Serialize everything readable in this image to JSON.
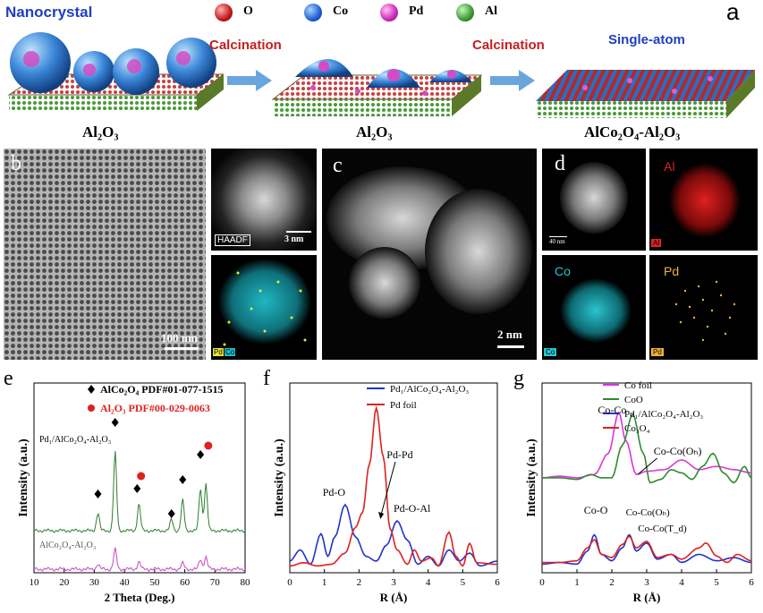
{
  "panel_a": {
    "letter": "a",
    "legend": [
      {
        "label": "O",
        "color": "#d43030"
      },
      {
        "label": "Co",
        "color": "#2f6fd6"
      },
      {
        "label": "Pd",
        "color": "#d63fc6"
      },
      {
        "label": "Al",
        "color": "#49a53f"
      }
    ],
    "nanocrystal_label": "Nanocrystal",
    "calcination_label_1": "Calcination",
    "calcination_label_2": "Calcination",
    "single_atom_label": "Single-atom",
    "support_1": "Al₂O₃",
    "support_2": "Al₂O₃",
    "support_3": "AlCo₂O₄-Al₂O₃"
  },
  "panel_b": {
    "letter": "b",
    "scale": "100 nm",
    "haadf": "HAADF",
    "scale_inset": "3 nm",
    "map_labels": [
      "Pd",
      "Co"
    ]
  },
  "panel_c": {
    "letter": "c",
    "scale": "2 nm"
  },
  "panel_d": {
    "letter": "d",
    "scale": "40 nm",
    "maps": [
      "Al",
      "Co",
      "Pd"
    ],
    "map_tags": [
      "Al",
      "Co",
      "Pd"
    ]
  },
  "chart_data": [
    {
      "panel": "e",
      "type": "line",
      "xlabel": "2 Theta (Deg.)",
      "ylabel": "Intensity (a.u.)",
      "xlim": [
        10,
        80
      ],
      "xticks": [
        10,
        20,
        30,
        40,
        50,
        60,
        70,
        80
      ],
      "legend": [
        {
          "marker": "diamond",
          "text": "AlCo₂O₄ PDF#01-077-1515",
          "color": "#000000"
        },
        {
          "marker": "circle",
          "text": "Al₂O₃ PDF#00-029-0063",
          "color": "#e02020"
        }
      ],
      "series": [
        {
          "name": "Pd₁/AlCo₂O₄-Al₂O₃",
          "color": "#2e7d2e",
          "peaks": [
            [
              31.2,
              40
            ],
            [
              36.9,
              175
            ],
            [
              44.8,
              60
            ],
            [
              55.6,
              25
            ],
            [
              59.3,
              68
            ],
            [
              65.2,
              95
            ],
            [
              67.0,
              105
            ]
          ]
        },
        {
          "name": "AlCo₂O₄-Al₂O₃",
          "color": "#c646c6",
          "peaks": [
            [
              31.2,
              10
            ],
            [
              36.9,
              40
            ],
            [
              44.8,
              15
            ],
            [
              59.3,
              12
            ],
            [
              65.2,
              20
            ],
            [
              67.0,
              25
            ]
          ]
        }
      ],
      "markers": [
        {
          "x": 31.2,
          "type": "diamond"
        },
        {
          "x": 36.9,
          "type": "diamond"
        },
        {
          "x": 45.5,
          "type": "circle"
        },
        {
          "x": 44.2,
          "type": "diamond"
        },
        {
          "x": 55.6,
          "type": "diamond"
        },
        {
          "x": 59.3,
          "type": "diamond"
        },
        {
          "x": 65.2,
          "type": "diamond"
        },
        {
          "x": 67.8,
          "type": "circle"
        }
      ]
    },
    {
      "panel": "f",
      "type": "line",
      "xlabel": "R (Å)",
      "ylabel": "Intensity (a.u.)",
      "xlim": [
        0,
        6
      ],
      "xticks": [
        0,
        1,
        2,
        3,
        4,
        5,
        6
      ],
      "series": [
        {
          "name": "Pd₁/AlCo₂O₄-Al₂O₃",
          "color": "#2233cc",
          "points": [
            [
              0,
              0.05
            ],
            [
              0.3,
              0.12
            ],
            [
              0.6,
              0.03
            ],
            [
              0.9,
              0.22
            ],
            [
              1.1,
              0.08
            ],
            [
              1.3,
              0.2
            ],
            [
              1.6,
              0.4
            ],
            [
              1.9,
              0.2
            ],
            [
              2.2,
              0.08
            ],
            [
              2.5,
              0.05
            ],
            [
              2.8,
              0.15
            ],
            [
              3.1,
              0.3
            ],
            [
              3.4,
              0.18
            ],
            [
              3.7,
              0.03
            ],
            [
              4.0,
              0.08
            ],
            [
              4.3,
              0.02
            ],
            [
              4.6,
              0.12
            ],
            [
              4.9,
              0.05
            ],
            [
              5.2,
              0.1
            ],
            [
              5.5,
              0.02
            ],
            [
              6,
              0.05
            ]
          ]
        },
        {
          "name": "Pd foil",
          "color": "#dd2222",
          "points": [
            [
              0,
              0.02
            ],
            [
              0.4,
              0.04
            ],
            [
              0.8,
              0.02
            ],
            [
              1.2,
              0.03
            ],
            [
              1.6,
              0.1
            ],
            [
              1.9,
              0.26
            ],
            [
              2.1,
              0.35
            ],
            [
              2.3,
              0.65
            ],
            [
              2.5,
              1.0
            ],
            [
              2.7,
              0.7
            ],
            [
              2.9,
              0.25
            ],
            [
              3.1,
              0.12
            ],
            [
              3.4,
              0.03
            ],
            [
              3.6,
              0.12
            ],
            [
              3.8,
              0.05
            ],
            [
              4.1,
              0.07
            ],
            [
              4.3,
              0.02
            ],
            [
              4.6,
              0.23
            ],
            [
              4.8,
              0.08
            ],
            [
              5.0,
              0.02
            ],
            [
              5.2,
              0.16
            ],
            [
              5.4,
              0.04
            ],
            [
              6,
              0.03
            ]
          ]
        }
      ],
      "annotations": [
        "Pd-O",
        "Pd-Pd",
        "Pd-O-Al"
      ]
    },
    {
      "panel": "g",
      "type": "line",
      "xlabel": "R (Å)",
      "ylabel": "Intensity (a.u.)",
      "xlim": [
        0,
        6
      ],
      "xticks": [
        0,
        1,
        2,
        3,
        4,
        5,
        6
      ],
      "series": [
        {
          "name": "Co foil",
          "color": "#dd33dd",
          "points": [
            [
              0,
              0.55
            ],
            [
              0.5,
              0.56
            ],
            [
              1.0,
              0.55
            ],
            [
              1.5,
              0.57
            ],
            [
              1.9,
              0.7
            ],
            [
              2.2,
              0.95
            ],
            [
              2.4,
              0.78
            ],
            [
              2.7,
              0.57
            ],
            [
              3.0,
              0.59
            ],
            [
              3.5,
              0.6
            ],
            [
              4.0,
              0.66
            ],
            [
              4.5,
              0.6
            ],
            [
              5.0,
              0.62
            ],
            [
              5.5,
              0.6
            ],
            [
              6,
              0.58
            ]
          ]
        },
        {
          "name": "CoO",
          "color": "#2e8a2e",
          "points": [
            [
              0,
              0.55
            ],
            [
              0.5,
              0.55
            ],
            [
              1.0,
              0.54
            ],
            [
              1.4,
              0.57
            ],
            [
              1.7,
              0.55
            ],
            [
              2.0,
              0.55
            ],
            [
              2.3,
              0.75
            ],
            [
              2.6,
              0.94
            ],
            [
              2.9,
              0.7
            ],
            [
              3.1,
              0.52
            ],
            [
              3.4,
              0.54
            ],
            [
              3.7,
              0.6
            ],
            [
              4.0,
              0.58
            ],
            [
              4.3,
              0.54
            ],
            [
              4.6,
              0.62
            ],
            [
              4.9,
              0.7
            ],
            [
              5.2,
              0.58
            ],
            [
              5.5,
              0.52
            ],
            [
              5.8,
              0.62
            ],
            [
              6,
              0.55
            ]
          ]
        },
        {
          "name": "Pd₁/AlCo₂O₄-Al₂O₃",
          "color": "#2233cc",
          "points": [
            [
              0,
              0.02
            ],
            [
              0.5,
              0.03
            ],
            [
              1.0,
              0.02
            ],
            [
              1.3,
              0.1
            ],
            [
              1.5,
              0.2
            ],
            [
              1.7,
              0.08
            ],
            [
              2.0,
              0.04
            ],
            [
              2.3,
              0.12
            ],
            [
              2.5,
              0.2
            ],
            [
              2.7,
              0.1
            ],
            [
              3.0,
              0.15
            ],
            [
              3.3,
              0.05
            ],
            [
              3.7,
              0.08
            ],
            [
              4.0,
              0.03
            ],
            [
              4.5,
              0.08
            ],
            [
              5.0,
              0.04
            ],
            [
              5.5,
              0.06
            ],
            [
              6,
              0.03
            ]
          ]
        },
        {
          "name": "Co₃O₄",
          "color": "#dd2222",
          "points": [
            [
              0,
              0.03
            ],
            [
              0.5,
              0.03
            ],
            [
              1.0,
              0.04
            ],
            [
              1.3,
              0.12
            ],
            [
              1.5,
              0.17
            ],
            [
              1.7,
              0.08
            ],
            [
              2.0,
              0.06
            ],
            [
              2.3,
              0.14
            ],
            [
              2.5,
              0.19
            ],
            [
              2.7,
              0.12
            ],
            [
              3.0,
              0.16
            ],
            [
              3.3,
              0.06
            ],
            [
              3.7,
              0.08
            ],
            [
              4.0,
              0.05
            ],
            [
              4.5,
              0.12
            ],
            [
              4.7,
              0.15
            ],
            [
              5.0,
              0.07
            ],
            [
              5.3,
              0.03
            ],
            [
              5.6,
              0.08
            ],
            [
              6,
              0.04
            ]
          ]
        }
      ],
      "annotations": [
        "Co-Co",
        "Co-Co(Oₕ)",
        "Co-O",
        "Co-Co(Oₕ)",
        "Co-Co(T_d)"
      ]
    }
  ]
}
